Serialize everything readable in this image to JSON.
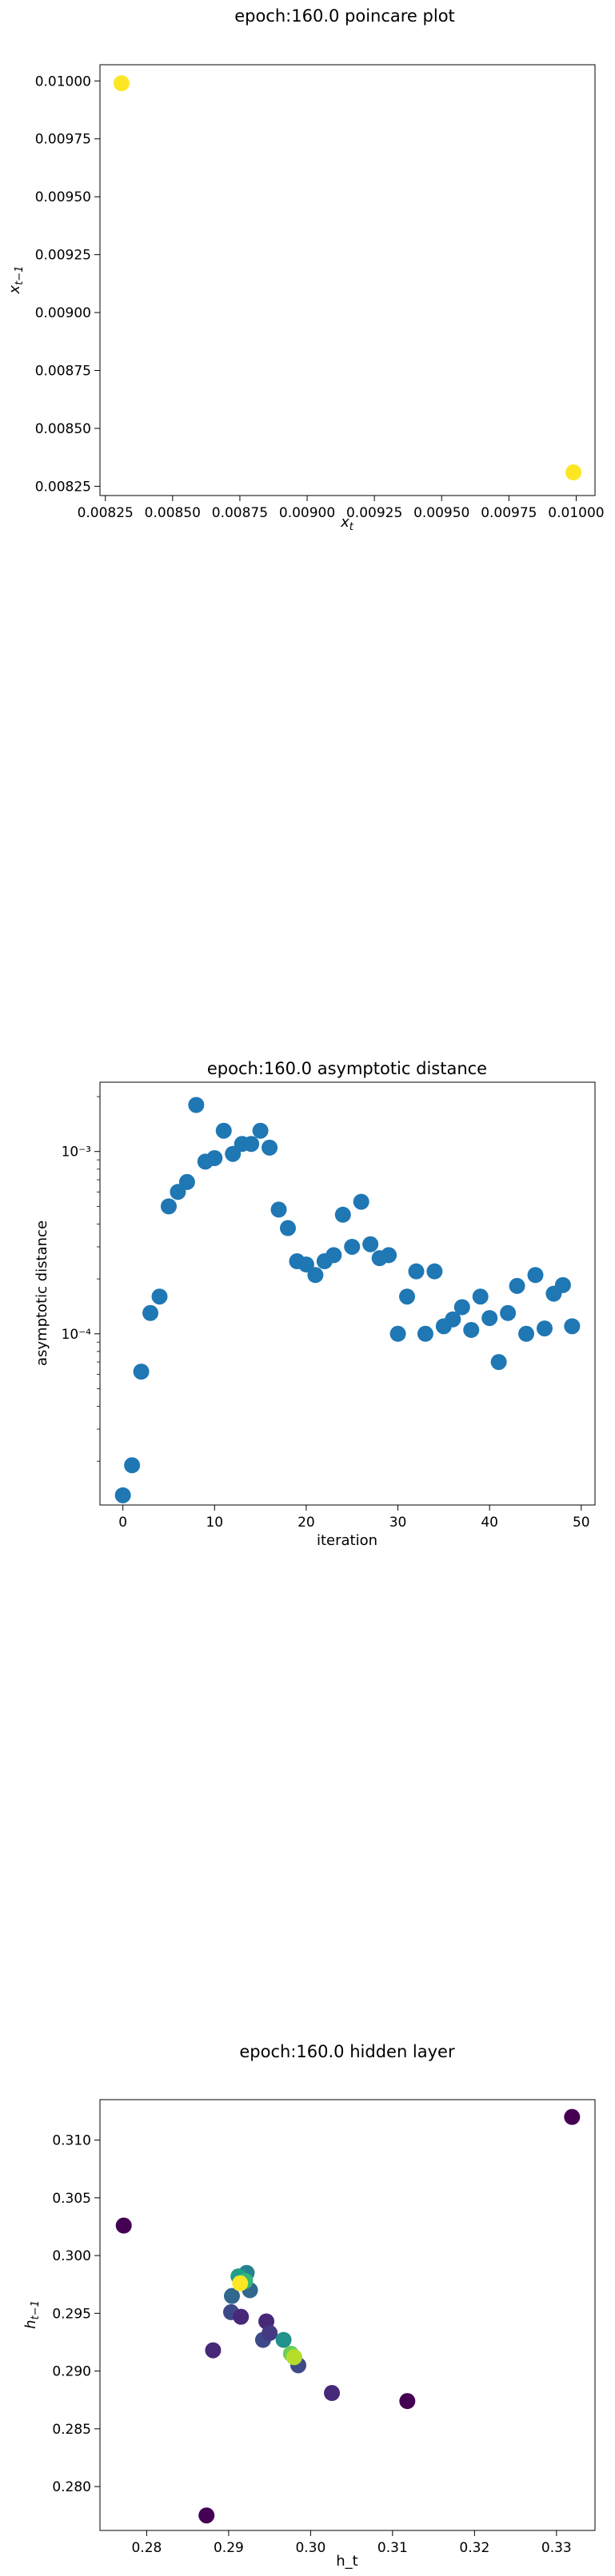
{
  "chart_data": [
    {
      "type": "scatter",
      "title": "epoch:160.0 poincare plot",
      "xlabel": "x_t",
      "ylabel": "x_{t−1}",
      "xlim": [
        0.00823,
        0.01007
      ],
      "ylim": [
        0.00821,
        0.01007
      ],
      "xticks": [
        0.00825,
        0.0085,
        0.00875,
        0.009,
        0.00925,
        0.0095,
        0.00975,
        0.01
      ],
      "xtick_labels": [
        "0.00825",
        "0.00850",
        "0.00875",
        "0.00900",
        "0.00925",
        "0.00950",
        "0.00975",
        "0.01000"
      ],
      "yticks": [
        0.00825,
        0.0085,
        0.00875,
        0.009,
        0.00925,
        0.0095,
        0.00975,
        0.01
      ],
      "ytick_labels": [
        "0.00825",
        "0.00850",
        "0.00875",
        "0.00900",
        "0.00925",
        "0.00950",
        "0.00975",
        "0.01000"
      ],
      "points": [
        {
          "x": 0.00831,
          "y": 0.00999,
          "color": "#fde725"
        },
        {
          "x": 0.00999,
          "y": 0.00831,
          "color": "#fde725"
        }
      ]
    },
    {
      "type": "scatter",
      "title": "epoch:160.0 asymptotic distance",
      "xlabel": "iteration",
      "ylabel": "asymptotic distance",
      "yscale": "log",
      "xlim": [
        -2.5,
        51.5
      ],
      "ylim": [
        1.15e-05,
        0.0024
      ],
      "xticks": [
        0,
        10,
        20,
        30,
        40,
        50
      ],
      "xtick_labels": [
        "0",
        "10",
        "20",
        "30",
        "40",
        "50"
      ],
      "yticks": [
        0.0001,
        0.001
      ],
      "ytick_labels": [
        "10⁻⁴",
        "10⁻³"
      ],
      "color": "#1f77b4",
      "x": [
        0,
        1,
        2,
        3,
        4,
        5,
        6,
        7,
        8,
        9,
        10,
        11,
        12,
        13,
        14,
        15,
        16,
        17,
        18,
        19,
        20,
        21,
        22,
        23,
        24,
        25,
        26,
        27,
        28,
        29,
        30,
        31,
        32,
        33,
        34,
        35,
        36,
        37,
        38,
        39,
        40,
        41,
        42,
        43,
        44,
        45,
        46,
        47,
        48,
        49
      ],
      "y": [
        1.3e-05,
        1.9e-05,
        6.2e-05,
        0.00013,
        0.00016,
        0.0005,
        0.0006,
        0.00068,
        0.0018,
        0.00088,
        0.00092,
        0.0013,
        0.00097,
        0.0011,
        0.0011,
        0.0013,
        0.00105,
        0.00048,
        0.00038,
        0.00025,
        0.00024,
        0.00021,
        0.00025,
        0.00027,
        0.00045,
        0.0003,
        0.00053,
        0.00031,
        0.00026,
        0.00027,
        0.0001,
        0.00016,
        0.00022,
        0.0001,
        0.00022,
        0.00011,
        0.00012,
        0.00014,
        0.000105,
        0.00016,
        0.000122,
        7e-05,
        0.00013,
        0.000183,
        0.0001,
        0.00021,
        0.000107,
        0.000166,
        0.000185,
        0.00011
      ]
    },
    {
      "type": "scatter",
      "title": "epoch:160.0 hidden layer",
      "xlabel": "h_t",
      "ylabel": "h_{t−1}",
      "xlim": [
        0.2743,
        0.3347
      ],
      "ylim": [
        0.2762,
        0.3135
      ],
      "xticks": [
        0.28,
        0.29,
        0.3,
        0.31,
        0.32,
        0.33
      ],
      "xtick_labels": [
        "0.28",
        "0.29",
        "0.30",
        "0.31",
        "0.32",
        "0.33"
      ],
      "yticks": [
        0.28,
        0.285,
        0.29,
        0.295,
        0.3,
        0.305,
        0.31
      ],
      "ytick_labels": [
        "0.280",
        "0.285",
        "0.290",
        "0.295",
        "0.300",
        "0.305",
        "0.310"
      ],
      "points": [
        {
          "x": 0.2772,
          "y": 0.3026,
          "color": "#440154"
        },
        {
          "x": 0.2873,
          "y": 0.2775,
          "color": "#440154"
        },
        {
          "x": 0.2881,
          "y": 0.2918,
          "color": "#482878"
        },
        {
          "x": 0.2903,
          "y": 0.2951,
          "color": "#3e4989"
        },
        {
          "x": 0.2915,
          "y": 0.2947,
          "color": "#482878"
        },
        {
          "x": 0.2926,
          "y": 0.297,
          "color": "#31688e"
        },
        {
          "x": 0.2942,
          "y": 0.2927,
          "color": "#3e4989"
        },
        {
          "x": 0.2946,
          "y": 0.2943,
          "color": "#482878"
        },
        {
          "x": 0.295,
          "y": 0.2933,
          "color": "#443983"
        },
        {
          "x": 0.2967,
          "y": 0.2927,
          "color": "#21918c"
        },
        {
          "x": 0.2985,
          "y": 0.2905,
          "color": "#3e4989"
        },
        {
          "x": 0.3026,
          "y": 0.2881,
          "color": "#482878"
        },
        {
          "x": 0.3118,
          "y": 0.2874,
          "color": "#440154"
        },
        {
          "x": 0.3319,
          "y": 0.312,
          "color": "#440154"
        },
        {
          "x": 0.2922,
          "y": 0.2985,
          "color": "#26828e"
        },
        {
          "x": 0.2912,
          "y": 0.2982,
          "color": "#1f9e89"
        },
        {
          "x": 0.292,
          "y": 0.2978,
          "color": "#35b779"
        },
        {
          "x": 0.2904,
          "y": 0.2965,
          "color": "#31688e"
        },
        {
          "x": 0.2976,
          "y": 0.2915,
          "color": "#6ece58"
        },
        {
          "x": 0.298,
          "y": 0.2912,
          "color": "#b5de2b"
        },
        {
          "x": 0.2914,
          "y": 0.2976,
          "color": "#fde725"
        }
      ]
    }
  ]
}
